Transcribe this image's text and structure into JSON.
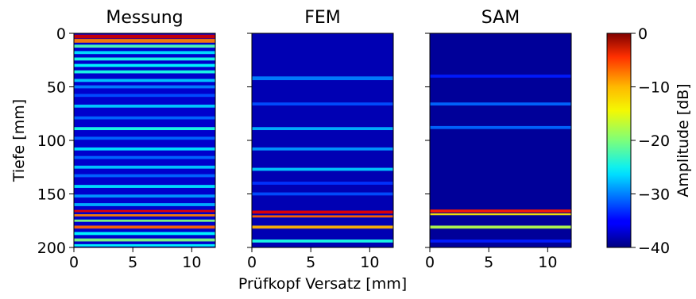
{
  "figure": {
    "xlabel": "Prüfkopf Versatz [mm]",
    "ylabel": "Tiefe [mm]",
    "colorbar_label": "Amplitude [dB]"
  },
  "chart_data": [
    {
      "type": "heatmap",
      "title": "Messung",
      "xlim": [
        0,
        12
      ],
      "ylim": [
        200,
        0
      ],
      "xticks": [
        "0",
        "5",
        "10"
      ],
      "yticks": [
        "0",
        "50",
        "100",
        "150",
        "200"
      ],
      "clim": [
        -40,
        0
      ],
      "colormap": "jet",
      "background_db": -37,
      "bands": [
        {
          "depth": 3,
          "db": -3,
          "width": 2.5
        },
        {
          "depth": 7,
          "db": -10,
          "width": 2.5
        },
        {
          "depth": 12,
          "db": -22,
          "width": 2
        },
        {
          "depth": 18,
          "db": -26,
          "width": 2
        },
        {
          "depth": 24,
          "db": -24,
          "width": 2
        },
        {
          "depth": 30,
          "db": -25,
          "width": 2
        },
        {
          "depth": 36,
          "db": -24,
          "width": 2
        },
        {
          "depth": 44,
          "db": -27,
          "width": 2
        },
        {
          "depth": 50,
          "db": -30,
          "width": 2
        },
        {
          "depth": 58,
          "db": -32,
          "width": 2
        },
        {
          "depth": 68,
          "db": -27,
          "width": 2
        },
        {
          "depth": 79,
          "db": -31,
          "width": 2
        },
        {
          "depth": 89,
          "db": -24,
          "width": 2
        },
        {
          "depth": 98,
          "db": -31,
          "width": 2
        },
        {
          "depth": 108,
          "db": -26,
          "width": 2
        },
        {
          "depth": 116,
          "db": -31,
          "width": 2
        },
        {
          "depth": 125,
          "db": -27,
          "width": 2
        },
        {
          "depth": 133,
          "db": -31,
          "width": 2
        },
        {
          "depth": 143,
          "db": -26,
          "width": 2
        },
        {
          "depth": 152,
          "db": -29,
          "width": 2
        },
        {
          "depth": 160,
          "db": -28,
          "width": 2
        },
        {
          "depth": 166,
          "db": -4,
          "width": 1.5
        },
        {
          "depth": 170,
          "db": -10,
          "width": 1.5
        },
        {
          "depth": 175,
          "db": -20,
          "width": 1.5
        },
        {
          "depth": 181,
          "db": -9,
          "width": 2
        },
        {
          "depth": 187,
          "db": -25,
          "width": 2
        },
        {
          "depth": 193,
          "db": -20,
          "width": 2
        },
        {
          "depth": 198,
          "db": -25,
          "width": 1.5
        }
      ]
    },
    {
      "type": "heatmap",
      "title": "FEM",
      "xlim": [
        0,
        12
      ],
      "ylim": [
        200,
        0
      ],
      "xticks": [
        "0",
        "5",
        "10"
      ],
      "clim": [
        -40,
        0
      ],
      "colormap": "jet",
      "background_db": -38,
      "bands": [
        {
          "depth": 42,
          "db": -30,
          "width": 2.5
        },
        {
          "depth": 66,
          "db": -32,
          "width": 2
        },
        {
          "depth": 89,
          "db": -28,
          "width": 2
        },
        {
          "depth": 108,
          "db": -29,
          "width": 2
        },
        {
          "depth": 127,
          "db": -27,
          "width": 2
        },
        {
          "depth": 140,
          "db": -33,
          "width": 2
        },
        {
          "depth": 150,
          "db": -32,
          "width": 2
        },
        {
          "depth": 167,
          "db": -4,
          "width": 2
        },
        {
          "depth": 171,
          "db": -9,
          "width": 1.5
        },
        {
          "depth": 181,
          "db": -12,
          "width": 2
        },
        {
          "depth": 194,
          "db": -24,
          "width": 2
        }
      ]
    },
    {
      "type": "heatmap",
      "title": "SAM",
      "xlim": [
        0,
        12
      ],
      "ylim": [
        200,
        0
      ],
      "xticks": [
        "0",
        "5",
        "10"
      ],
      "clim": [
        -40,
        0
      ],
      "colormap": "jet",
      "background_db": -39,
      "bands": [
        {
          "depth": 40,
          "db": -34,
          "width": 2
        },
        {
          "depth": 66,
          "db": -31,
          "width": 2
        },
        {
          "depth": 88,
          "db": -31,
          "width": 2
        },
        {
          "depth": 166,
          "db": -6,
          "width": 2
        },
        {
          "depth": 169,
          "db": -14,
          "width": 1.2
        },
        {
          "depth": 181,
          "db": -18,
          "width": 2
        },
        {
          "depth": 194,
          "db": -34,
          "width": 2
        }
      ]
    },
    {
      "type": "colorbar",
      "colormap": "jet",
      "range": [
        -40,
        0
      ],
      "ticks": [
        "0",
        "−10",
        "−20",
        "−30",
        "−40"
      ],
      "label": "Amplitude [dB]"
    }
  ]
}
